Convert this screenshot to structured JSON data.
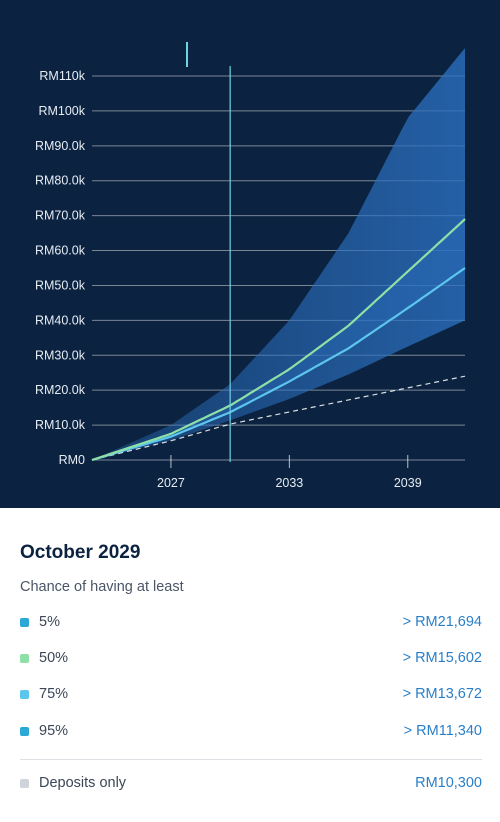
{
  "chart_data": {
    "type": "area",
    "y_ticks": [
      "RM0",
      "RM10.0k",
      "RM20.0k",
      "RM30.0k",
      "RM40.0k",
      "RM50.0k",
      "RM60.0k",
      "RM70.0k",
      "RM80.0k",
      "RM90.0k",
      "RM100k",
      "RM110k"
    ],
    "ylim": [
      0,
      110000
    ],
    "x_ticks": [
      "2027",
      "2033",
      "2039"
    ],
    "xlim": [
      2023.0,
      2041.9
    ],
    "selected_x": 2030.0,
    "series": [
      {
        "percentile": "5%",
        "x": [
          2023,
          2027,
          2030,
          2033,
          2036,
          2039,
          2041.9
        ],
        "values": [
          0,
          10000,
          21694,
          40000,
          65000,
          98000,
          118000
        ]
      },
      {
        "percentile": "50%",
        "x": [
          2023,
          2027,
          2030,
          2033,
          2036,
          2039,
          2041.9
        ],
        "values": [
          0,
          7500,
          15602,
          26000,
          38500,
          54000,
          69000
        ]
      },
      {
        "percentile": "75%",
        "x": [
          2023,
          2027,
          2030,
          2033,
          2036,
          2039,
          2041.9
        ],
        "values": [
          0,
          6700,
          13672,
          22500,
          32000,
          43500,
          55000
        ]
      },
      {
        "percentile": "95%",
        "x": [
          2023,
          2027,
          2030,
          2033,
          2036,
          2039,
          2041.9
        ],
        "values": [
          0,
          5600,
          11340,
          17500,
          24500,
          32500,
          40000
        ]
      },
      {
        "percentile": "Deposits only",
        "x": [
          2023,
          2027,
          2030,
          2041.9
        ],
        "values": [
          0,
          5500,
          10300,
          24000
        ]
      }
    ],
    "grid": true,
    "colors": {
      "background": "#0b2340",
      "band": "#2b6fbf",
      "median": "#8fe0a6",
      "p75": "#5cc6ee",
      "deposits": "#ffffff",
      "cursor": "#6fd3e6"
    }
  },
  "detail": {
    "date": "October 2029",
    "subtitle": "Chance of having at least",
    "rows": [
      {
        "label": "5%",
        "value": "> RM21,694",
        "color": "#2aa9d6"
      },
      {
        "label": "50%",
        "value": "> RM15,602",
        "color": "#8fe0a6"
      },
      {
        "label": "75%",
        "value": "> RM13,672",
        "color": "#5cc6ee"
      },
      {
        "label": "95%",
        "value": "> RM11,340",
        "color": "#2aa9d6"
      }
    ],
    "deposits": {
      "label": "Deposits only",
      "value": "RM10,300",
      "color": "#cfd4da"
    }
  }
}
